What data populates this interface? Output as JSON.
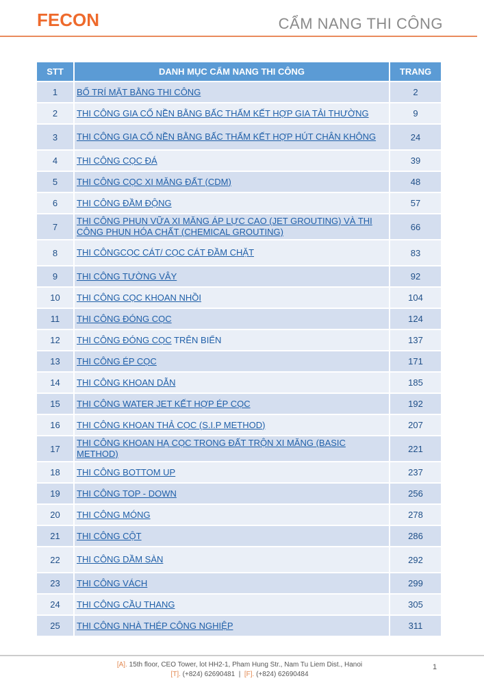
{
  "header": {
    "logo": "FECON",
    "title": "CẨM NANG THI CÔNG"
  },
  "table": {
    "columns": [
      "STT",
      "DANH MỤC CẨM NANG THI CÔNG",
      "TRANG"
    ],
    "rows": [
      {
        "stt": "1",
        "title": "BỐ TRÍ MẶT BẰNG THI CÔNG",
        "page": "2"
      },
      {
        "stt": "2",
        "title": "THI CÔNG GIA CỐ NỀN BẰNG BẤC THẤM KẾT HỢP GIA TẢI THƯỜNG",
        "page": "9"
      },
      {
        "stt": "3",
        "title": "THI CÔNG GIA CỐ NỀN BẰNG BẤC THẤM KẾT HỢP HÚT CHÂN KHÔNG",
        "page": "24"
      },
      {
        "stt": "4",
        "title": "THI CÔNG CỌC ĐÁ",
        "page": "39"
      },
      {
        "stt": "5",
        "title": "THI CÔNG CỌC XI MĂNG ĐẤT (CDM)",
        "page": "48"
      },
      {
        "stt": "6",
        "title": "THI CÔNG ĐẦM ĐỘNG",
        "page": "57"
      },
      {
        "stt": "7",
        "title": "THI CÔNG PHUN VỮA XI MĂNG ÁP LỰC CAO (JET GROUTING) VÀ THI CÔNG PHUN HÓA CHẤT (CHEMICAL GROUTING)",
        "page": "66"
      },
      {
        "stt": "8",
        "title": "THI CÔNGCỌC CÁT/ CỌC CÁT ĐẦM CHẶT",
        "page": "83"
      },
      {
        "stt": "9",
        "title": "THI CÔNG TƯỜNG VÂY",
        "page": "92"
      },
      {
        "stt": "10",
        "title": "THI CÔNG CỌC KHOAN NHỒI",
        "page": "104"
      },
      {
        "stt": "11",
        "title": "THI CÔNG ĐÓNG CỌC",
        "page": "124"
      },
      {
        "stt": "12",
        "title": "THI CÔNG ĐÓNG CỌC",
        "title_extra": " TRÊN BIỂN",
        "page": "137"
      },
      {
        "stt": "13",
        "title": "THI CÔNG ÉP CỌC",
        "page": "171"
      },
      {
        "stt": "14",
        "title": "THI CÔNG KHOAN DẪN",
        "page": "185"
      },
      {
        "stt": "15",
        "title": "THI CÔNG WATER JET KẾT HỢP ÉP CỌC",
        "page": "192"
      },
      {
        "stt": "16",
        "title": "THI CÔNG KHOAN THẢ CỌC (S.I.P METHOD)",
        "page": "207"
      },
      {
        "stt": "17",
        "title": "THI CÔNG KHOAN HẠ CỌC TRONG ĐẤT TRỘN XI MĂNG (BASIC METHOD)",
        "page": "221"
      },
      {
        "stt": "18",
        "title": "THI CÔNG BOTTOM UP",
        "page": "237"
      },
      {
        "stt": "19",
        "title": "THI CÔNG TOP - DOWN",
        "page": "256"
      },
      {
        "stt": "20",
        "title": "THI CÔNG MÓNG",
        "page": "278"
      },
      {
        "stt": "21",
        "title": "THI CÔNG CỘT",
        "page": "286"
      },
      {
        "stt": "22",
        "title": "THI CÔNG DẦM SÀN",
        "page": "292"
      },
      {
        "stt": "23",
        "title": "THI CÔNG VÁCH",
        "page": "299"
      },
      {
        "stt": "24",
        "title": "THI CÔNG CẦU THANG",
        "page": "305"
      },
      {
        "stt": "25",
        "title": "THI CÔNG NHÀ THÉP CÔNG NGHIỆP",
        "page": "311"
      }
    ]
  },
  "footer": {
    "address_label": "[A].",
    "address": " 15th floor, CEO Tower, lot HH2-1, Pham Hung Str., Nam Tu Liem Dist., Hanoi",
    "tel_label": "[T].",
    "tel": " (+824) 62690481",
    "sep": "  |  ",
    "fax_label": "[F].",
    "fax": " (+824) 62690484",
    "page_number": "1"
  },
  "colors": {
    "brand": "#ee6a2c",
    "header_bg": "#5b9bd5",
    "link": "#1f5fa8"
  }
}
